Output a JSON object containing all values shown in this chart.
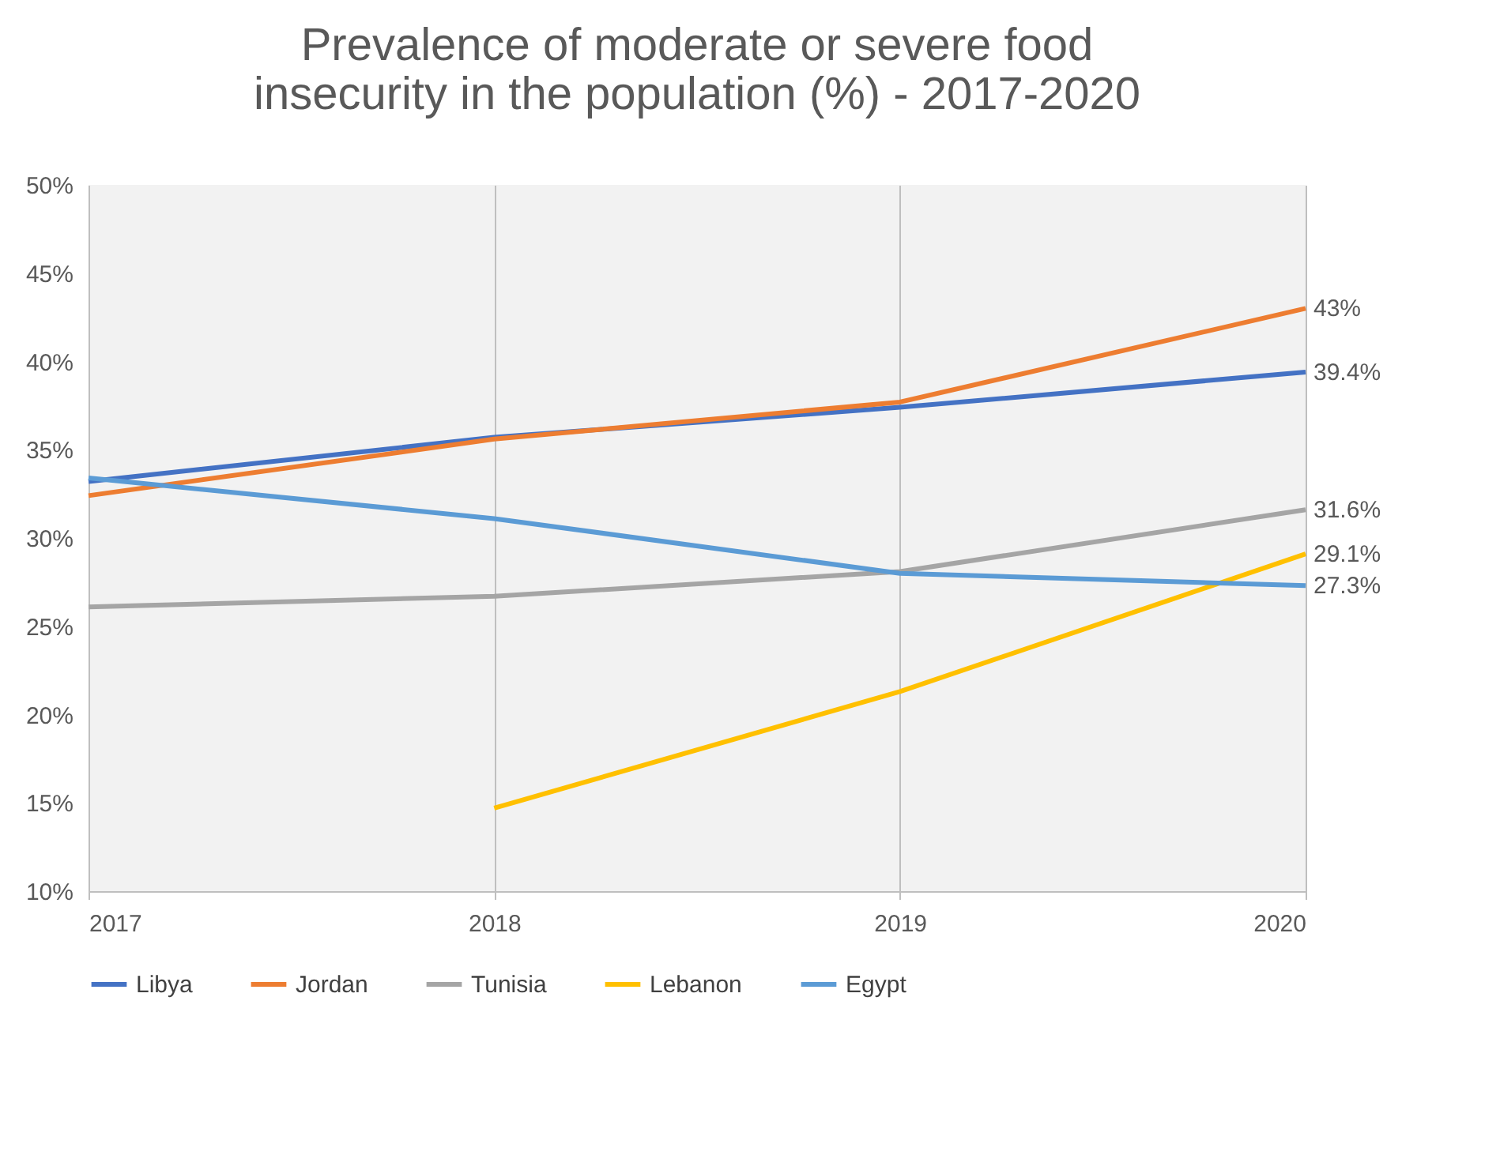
{
  "chart_data": {
    "type": "line",
    "title": "Prevalence of moderate or severe food insecurity in the population (%) - 2017-2020",
    "x": [
      2017,
      2018,
      2019,
      2020
    ],
    "xlim": [
      2017,
      2020
    ],
    "xticks": [
      2017,
      2018,
      2019,
      2020
    ],
    "ylim": [
      10,
      50
    ],
    "yticks": [
      {
        "value": 10,
        "label": "10%"
      },
      {
        "value": 15,
        "label": "15%"
      },
      {
        "value": 20,
        "label": "20%"
      },
      {
        "value": 25,
        "label": "25%"
      },
      {
        "value": 30,
        "label": "30%"
      },
      {
        "value": 35,
        "label": "35%"
      },
      {
        "value": 40,
        "label": "40%"
      },
      {
        "value": 45,
        "label": "45%"
      },
      {
        "value": 50,
        "label": "50%"
      }
    ],
    "grid": "x",
    "legend": "bottom",
    "marker": "none",
    "line_style": "solid",
    "series": [
      {
        "name": "Libya",
        "color": "#4472c4",
        "values": [
          33.2,
          35.7,
          37.4,
          39.4
        ],
        "value_labels": [
          null,
          null,
          null,
          "39.4%"
        ]
      },
      {
        "name": "Jordan",
        "color": "#ed7d31",
        "values": [
          32.4,
          35.6,
          37.7,
          43
        ],
        "value_labels": [
          null,
          null,
          null,
          "43%"
        ]
      },
      {
        "name": "Tunisia",
        "color": "#a5a5a5",
        "values": [
          26.1,
          26.7,
          28.1,
          31.6
        ],
        "value_labels": [
          null,
          null,
          null,
          "31.6%"
        ]
      },
      {
        "name": "Lebanon",
        "color": "#ffc000",
        "values": [
          null,
          14.7,
          21.3,
          29.1
        ],
        "value_labels": [
          null,
          null,
          null,
          "29.1%"
        ]
      },
      {
        "name": "Egypt",
        "color": "#5b9bd5",
        "values": [
          33.4,
          31.1,
          28.0,
          27.3
        ],
        "value_labels": [
          null,
          null,
          null,
          "27.3%"
        ]
      }
    ]
  }
}
